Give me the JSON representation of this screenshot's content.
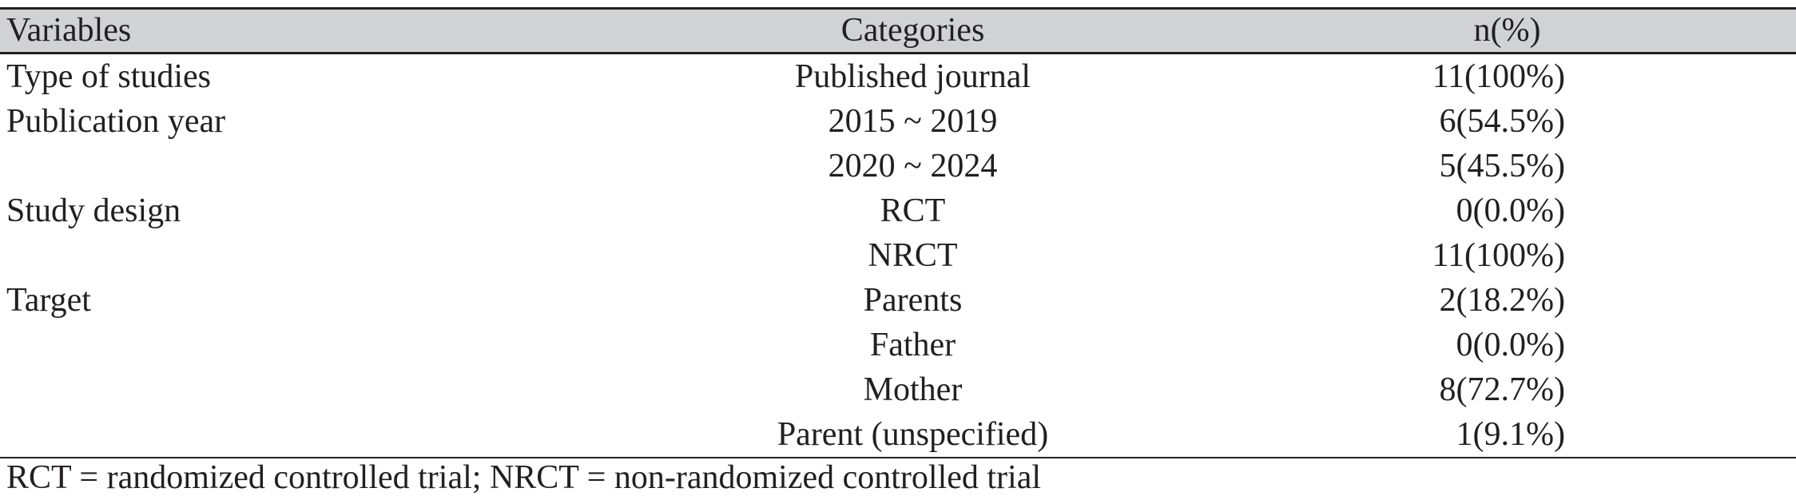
{
  "table": {
    "headers": {
      "variables": "Variables",
      "categories": "Categories",
      "n_percent": "n(%)"
    },
    "rows": [
      {
        "variable": "Type of studies",
        "category": "Published journal",
        "n": "11(100%)"
      },
      {
        "variable": "Publication year",
        "category": "2015 ~ 2019",
        "n": "6(54.5%)"
      },
      {
        "variable": "",
        "category": "2020 ~ 2024",
        "n": "5(45.5%)"
      },
      {
        "variable": "Study design",
        "category": "RCT",
        "n": "0(0.0%)"
      },
      {
        "variable": "",
        "category": "NRCT",
        "n": "11(100%)"
      },
      {
        "variable": "Target",
        "category": "Parents",
        "n": "2(18.2%)"
      },
      {
        "variable": "",
        "category": "Father",
        "n": "0(0.0%)"
      },
      {
        "variable": "",
        "category": "Mother",
        "n": "8(72.7%)"
      },
      {
        "variable": "",
        "category": "Parent (unspecified)",
        "n": "1(9.1%)"
      }
    ]
  },
  "footnote": "RCT = randomized controlled trial; NRCT = non-randomized controlled trial",
  "colors": {
    "header_background": "#d1d2d4",
    "text": "#231f20",
    "rule": "#231f20"
  }
}
